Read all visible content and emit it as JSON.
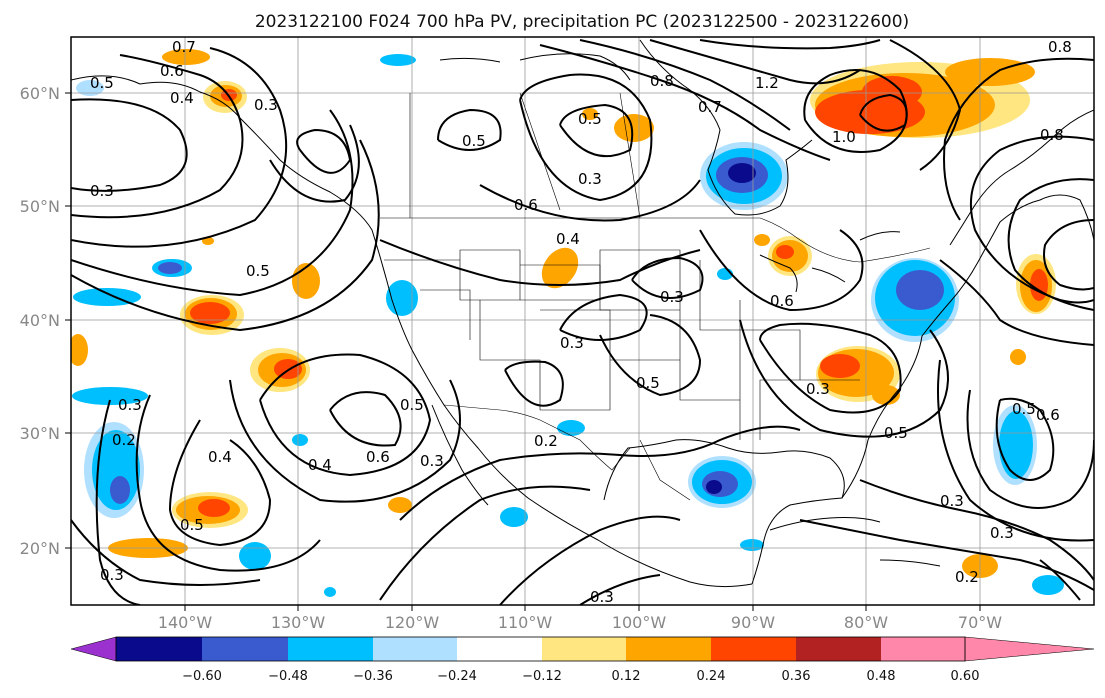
{
  "title": "2023122100 F024 700 hPa PV, precipitation PC (2023122500 - 2023122600)",
  "lon_labels": [
    "140°W",
    "130°W",
    "120°W",
    "110°W",
    "100°W",
    "90°W",
    "80°W",
    "70°W"
  ],
  "lat_labels": [
    "60°N",
    "50°N",
    "40°N",
    "30°N",
    "20°N"
  ],
  "colorbar": {
    "ticks": [
      "−0.60",
      "−0.48",
      "−0.36",
      "−0.24",
      "−0.12",
      "0.12",
      "0.24",
      "0.36",
      "0.48",
      "0.60"
    ],
    "colors": [
      "#9b32d0",
      "#0a0a8c",
      "#3a5bd0",
      "#00bfff",
      "#b0e0ff",
      "#ffffff",
      "#ffe680",
      "#ffa500",
      "#ff4500",
      "#b22222",
      "#ff88aa"
    ]
  },
  "colors": {
    "shade_light_pos": "#ffe680",
    "shade_pos": "#ffa500",
    "shade_strong_pos": "#ff4500",
    "shade_vstrong_pos": "#b22222",
    "shade_light_neg": "#b0e0ff",
    "shade_neg": "#00bfff",
    "shade_strong_neg": "#3a5bd0",
    "shade_vstrong_neg": "#0a0a8c"
  },
  "contour_labels": [
    "0.7",
    "0.6",
    "0.5",
    "0.4",
    "0.3",
    "0.3",
    "0.5",
    "0.8",
    "0.8",
    "1.2",
    "1.0",
    "0.6",
    "0.3",
    "0.4",
    "0.5",
    "0.3",
    "0.3",
    "0.5",
    "0.6",
    "0.5",
    "0.6",
    "0.3",
    "0.4",
    "0.3",
    "0.2",
    "0.2",
    "0.5",
    "0.4",
    "0.5",
    "0.3",
    "0.5",
    "0.6",
    "0.5",
    "0.3",
    "0.3",
    "0.3",
    "0.2",
    "0.3",
    "0.7",
    "0.8"
  ]
}
